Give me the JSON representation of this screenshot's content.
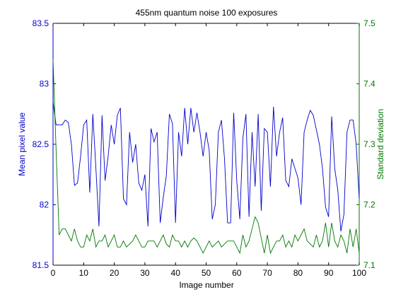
{
  "chart_data": {
    "type": "line",
    "title": "455nm quantum noise 100 exposures",
    "xlabel": "Image number",
    "ylabel_left": "Mean pixel value",
    "ylabel_right": "Standard deviation",
    "xlim": [
      0,
      100
    ],
    "ylim_left": [
      81.5,
      83.5
    ],
    "ylim_right": [
      7.1,
      7.5
    ],
    "x_ticks": [
      0,
      10,
      20,
      30,
      40,
      50,
      60,
      70,
      80,
      90,
      100
    ],
    "y_ticks_left": [
      "81.5",
      "82",
      "82.5",
      "83",
      "83.5"
    ],
    "y_ticks_right": [
      "7.1",
      "7.2",
      "7.3",
      "7.4",
      "7.5"
    ],
    "grid": false,
    "colors": {
      "left": "#0000cc",
      "right": "#007700",
      "axes": "#000000"
    },
    "series": [
      {
        "axis": "left",
        "values": [
          82.85,
          82.66,
          82.66,
          82.66,
          82.7,
          82.68,
          82.5,
          82.16,
          82.18,
          82.4,
          82.66,
          82.7,
          82.1,
          82.75,
          82.3,
          81.82,
          82.74,
          82.2,
          82.4,
          82.66,
          82.5,
          82.74,
          82.8,
          82.05,
          82.0,
          82.6,
          82.35,
          82.5,
          82.18,
          82.12,
          82.25,
          81.82,
          82.63,
          82.52,
          82.6,
          81.85,
          82.06,
          82.24,
          82.75,
          82.67,
          81.85,
          82.6,
          82.4,
          82.8,
          82.5,
          82.8,
          82.6,
          82.76,
          82.6,
          82.4,
          82.6,
          82.45,
          81.88,
          82.0,
          82.6,
          82.7,
          82.38,
          81.85,
          81.85,
          82.76,
          82.2,
          81.88,
          82.55,
          82.75,
          81.9,
          82.6,
          82.15,
          82.75,
          81.95,
          82.63,
          82.6,
          82.15,
          82.81,
          82.4,
          82.6,
          82.72,
          82.2,
          82.15,
          82.38,
          82.3,
          82.22,
          82.0,
          82.6,
          82.7,
          82.78,
          82.74,
          82.62,
          82.5,
          82.3,
          81.98,
          81.9,
          82.73,
          82.3,
          82.12,
          81.78,
          81.92,
          82.6,
          82.7,
          82.7,
          82.5,
          82.05
        ]
      },
      {
        "axis": "right",
        "values": [
          7.44,
          7.29,
          7.15,
          7.16,
          7.16,
          7.15,
          7.14,
          7.16,
          7.14,
          7.13,
          7.13,
          7.15,
          7.14,
          7.16,
          7.13,
          7.14,
          7.14,
          7.15,
          7.13,
          7.14,
          7.15,
          7.13,
          7.13,
          7.14,
          7.13,
          7.135,
          7.14,
          7.15,
          7.14,
          7.13,
          7.13,
          7.14,
          7.14,
          7.14,
          7.13,
          7.14,
          7.15,
          7.135,
          7.13,
          7.15,
          7.14,
          7.14,
          7.13,
          7.14,
          7.13,
          7.14,
          7.145,
          7.14,
          7.13,
          7.12,
          7.13,
          7.14,
          7.13,
          7.135,
          7.14,
          7.13,
          7.135,
          7.14,
          7.14,
          7.14,
          7.13,
          7.12,
          7.15,
          7.13,
          7.14,
          7.16,
          7.18,
          7.17,
          7.145,
          7.12,
          7.15,
          7.12,
          7.13,
          7.14,
          7.14,
          7.15,
          7.13,
          7.14,
          7.13,
          7.15,
          7.14,
          7.15,
          7.16,
          7.14,
          7.135,
          7.13,
          7.15,
          7.13,
          7.14,
          7.17,
          7.13,
          7.17,
          7.14,
          7.13,
          7.15,
          7.14,
          7.12,
          7.16,
          7.13,
          7.16,
          7.12
        ]
      }
    ]
  }
}
